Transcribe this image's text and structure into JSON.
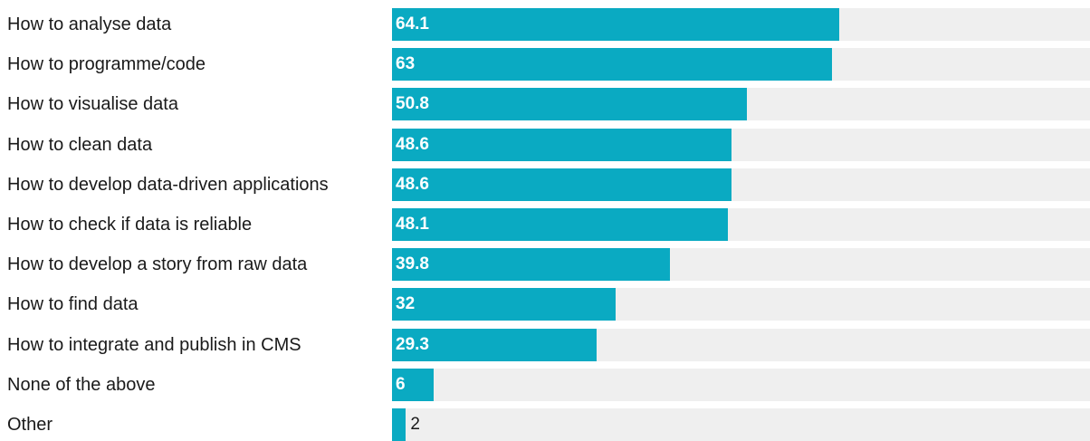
{
  "colors": {
    "bar": "#0aaac2",
    "track": "#efefef",
    "label": "#1a1a1a",
    "value_inside": "#ffffff"
  },
  "chart_data": {
    "type": "bar",
    "orientation": "horizontal",
    "title": "",
    "xlabel": "",
    "ylabel": "",
    "xlim": [
      0,
      100
    ],
    "grid": false,
    "categories": [
      "How to analyse data",
      "How to programme/code",
      "How to visualise data",
      "How to clean data",
      "How to develop data-driven applications",
      "How to check if data is reliable",
      "How to develop a story from raw data",
      "How to find data",
      "How to integrate and publish in CMS",
      "None of the above",
      "Other"
    ],
    "values": [
      64.1,
      63,
      50.8,
      48.6,
      48.6,
      48.1,
      39.8,
      32,
      29.3,
      6,
      2
    ],
    "value_labels": [
      "64.1",
      "63",
      "50.8",
      "48.6",
      "48.6",
      "48.1",
      "39.8",
      "32",
      "29.3",
      "6",
      "2"
    ]
  }
}
